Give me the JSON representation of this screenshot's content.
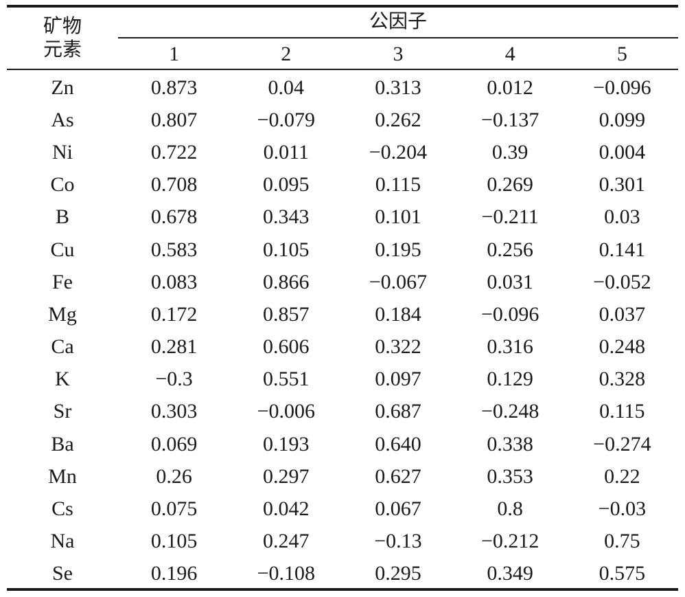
{
  "header": {
    "row_label_line1": "矿物",
    "row_label_line2": "元素",
    "group_label": "公因子",
    "factors": [
      "1",
      "2",
      "3",
      "4",
      "5"
    ]
  },
  "rows": [
    {
      "element": "Zn",
      "values": [
        "0.873",
        "0.04",
        "0.313",
        "0.012",
        "−0.096"
      ]
    },
    {
      "element": "As",
      "values": [
        "0.807",
        "−0.079",
        "0.262",
        "−0.137",
        "0.099"
      ]
    },
    {
      "element": "Ni",
      "values": [
        "0.722",
        "0.011",
        "−0.204",
        "0.39",
        "0.004"
      ]
    },
    {
      "element": "Co",
      "values": [
        "0.708",
        "0.095",
        "0.115",
        "0.269",
        "0.301"
      ]
    },
    {
      "element": "B",
      "values": [
        "0.678",
        "0.343",
        "0.101",
        "−0.211",
        "0.03"
      ]
    },
    {
      "element": "Cu",
      "values": [
        "0.583",
        "0.105",
        "0.195",
        "0.256",
        "0.141"
      ]
    },
    {
      "element": "Fe",
      "values": [
        "0.083",
        "0.866",
        "−0.067",
        "0.031",
        "−0.052"
      ]
    },
    {
      "element": "Mg",
      "values": [
        "0.172",
        "0.857",
        "0.184",
        "−0.096",
        "0.037"
      ]
    },
    {
      "element": "Ca",
      "values": [
        "0.281",
        "0.606",
        "0.322",
        "0.316",
        "0.248"
      ]
    },
    {
      "element": "K",
      "values": [
        "−0.3",
        "0.551",
        "0.097",
        "0.129",
        "0.328"
      ]
    },
    {
      "element": "Sr",
      "values": [
        "0.303",
        "−0.006",
        "0.687",
        "−0.248",
        "0.115"
      ]
    },
    {
      "element": "Ba",
      "values": [
        "0.069",
        "0.193",
        "0.640",
        "0.338",
        "−0.274"
      ]
    },
    {
      "element": "Mn",
      "values": [
        "0.26",
        "0.297",
        "0.627",
        "0.353",
        "0.22"
      ]
    },
    {
      "element": "Cs",
      "values": [
        "0.075",
        "0.042",
        "0.067",
        "0.8",
        "−0.03"
      ]
    },
    {
      "element": "Na",
      "values": [
        "0.105",
        "0.247",
        "−0.13",
        "−0.212",
        "0.75"
      ]
    },
    {
      "element": "Se",
      "values": [
        "0.196",
        "−0.108",
        "0.295",
        "0.349",
        "0.575"
      ]
    }
  ]
}
